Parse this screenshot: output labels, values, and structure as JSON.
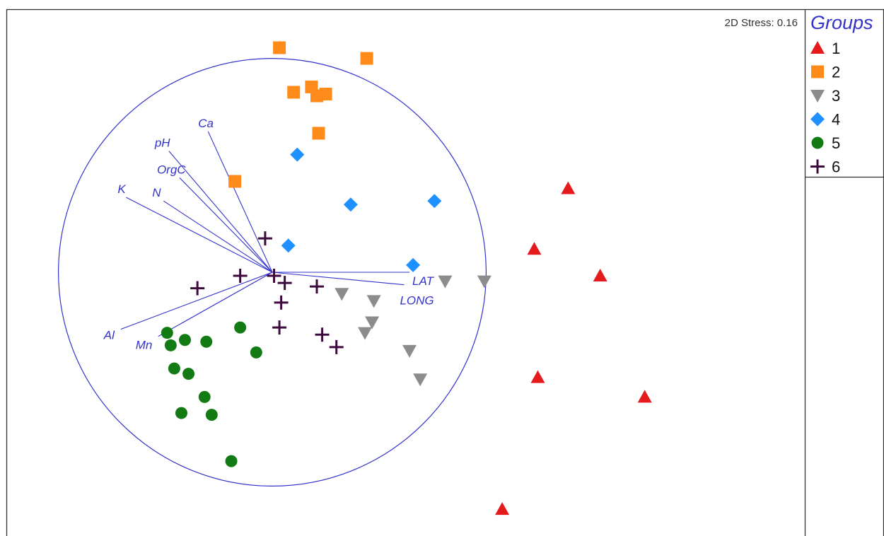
{
  "chart_data": {
    "type": "scatter",
    "stress_text": "2D Stress: 0.16",
    "legend": {
      "title": "Groups",
      "placement": "top-right",
      "entries": [
        {
          "label": "1",
          "marker": "triangle-up",
          "color": "#e41a1c"
        },
        {
          "label": "2",
          "marker": "square",
          "color": "#ff8c1a"
        },
        {
          "label": "3",
          "marker": "triangle-down",
          "color": "#8c8c8c"
        },
        {
          "label": "4",
          "marker": "diamond",
          "color": "#1e90ff"
        },
        {
          "label": "5",
          "marker": "circle",
          "color": "#137b13"
        },
        {
          "label": "6",
          "marker": "plus",
          "color": "#3d0a3d"
        }
      ]
    },
    "xlim": [
      -1.6,
      3.5
    ],
    "ylim": [
      -1.6,
      1.45
    ],
    "grid": false,
    "series": [
      {
        "name": "1",
        "points": [
          [
            1.66,
            0.47
          ],
          [
            1.47,
            0.13
          ],
          [
            1.84,
            -0.02
          ],
          [
            1.49,
            -0.59
          ],
          [
            2.09,
            -0.7
          ],
          [
            1.29,
            -1.33
          ]
        ]
      },
      {
        "name": "2",
        "points": [
          [
            0.04,
            1.26
          ],
          [
            0.53,
            1.2
          ],
          [
            0.22,
            1.04
          ],
          [
            0.12,
            1.01
          ],
          [
            0.3,
            1.0
          ],
          [
            0.25,
            0.99
          ],
          [
            0.26,
            0.78
          ],
          [
            -0.21,
            0.51
          ]
        ]
      },
      {
        "name": "3",
        "points": [
          [
            0.97,
            -0.05
          ],
          [
            1.19,
            -0.05
          ],
          [
            0.39,
            -0.12
          ],
          [
            0.57,
            -0.16
          ],
          [
            0.56,
            -0.28
          ],
          [
            0.52,
            -0.34
          ],
          [
            0.77,
            -0.44
          ],
          [
            0.83,
            -0.6
          ]
        ]
      },
      {
        "name": "4",
        "points": [
          [
            0.14,
            0.66
          ],
          [
            0.44,
            0.38
          ],
          [
            0.91,
            0.4
          ],
          [
            0.09,
            0.15
          ],
          [
            0.79,
            0.04
          ]
        ]
      },
      {
        "name": "5",
        "points": [
          [
            -0.59,
            -0.34
          ],
          [
            -0.57,
            -0.41
          ],
          [
            -0.49,
            -0.38
          ],
          [
            -0.37,
            -0.39
          ],
          [
            -0.18,
            -0.31
          ],
          [
            -0.09,
            -0.45
          ],
          [
            -0.55,
            -0.54
          ],
          [
            -0.47,
            -0.57
          ],
          [
            -0.38,
            -0.7
          ],
          [
            -0.51,
            -0.79
          ],
          [
            -0.34,
            -0.8
          ],
          [
            -0.23,
            -1.06
          ]
        ]
      },
      {
        "name": "6",
        "points": [
          [
            -0.04,
            0.19
          ],
          [
            0.01,
            -0.02
          ],
          [
            0.07,
            -0.06
          ],
          [
            0.25,
            -0.08
          ],
          [
            -0.18,
            -0.02
          ],
          [
            -0.42,
            -0.09
          ],
          [
            0.05,
            -0.17
          ],
          [
            0.04,
            -0.31
          ],
          [
            0.28,
            -0.35
          ],
          [
            0.36,
            -0.42
          ]
        ]
      }
    ],
    "vectors": {
      "circle_radius": 1.2,
      "items": [
        {
          "label": "Ca",
          "x": -0.36,
          "y": 0.79
        },
        {
          "label": "pH",
          "x": -0.58,
          "y": 0.68
        },
        {
          "label": "OrgC",
          "x": -0.52,
          "y": 0.53
        },
        {
          "label": "N",
          "x": -0.61,
          "y": 0.4
        },
        {
          "label": "K",
          "x": -0.82,
          "y": 0.42
        },
        {
          "label": "LAT",
          "x": 0.77,
          "y": 0.0
        },
        {
          "label": "LONG",
          "x": 0.74,
          "y": -0.07
        },
        {
          "label": "Al",
          "x": -0.85,
          "y": -0.32
        },
        {
          "label": "Mn",
          "x": -0.64,
          "y": -0.36
        }
      ]
    }
  }
}
